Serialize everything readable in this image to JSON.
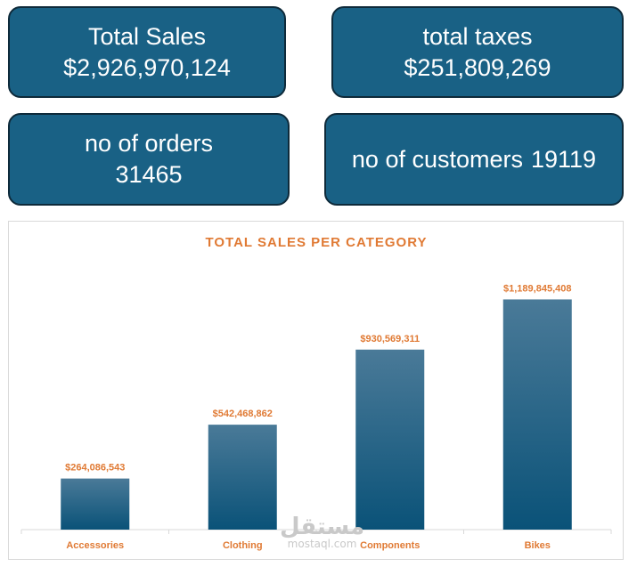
{
  "kpis": {
    "total_sales": {
      "label": "Total Sales",
      "value": "$2,926,970,124"
    },
    "total_taxes": {
      "label": "total taxes",
      "value": "$251,809,269"
    },
    "orders": {
      "label": "no of orders",
      "value": "31465"
    },
    "customers": {
      "label": "no of customers",
      "value": "19119"
    }
  },
  "colors": {
    "card_fill": "#196185",
    "card_border": "#0e2a3a",
    "bar_top": "#4a7a98",
    "bar_bottom": "#0a5278",
    "label_orange": "#e07a34"
  },
  "watermark": {
    "arabic": "مستقل",
    "latin": "mostaql.com"
  },
  "chart_data": {
    "type": "bar",
    "title": "TOTAL SALES PER CATEGORY",
    "categories": [
      "Accessories",
      "Clothing",
      "Components",
      "Bikes"
    ],
    "values": [
      264086543,
      542468862,
      930569311,
      1189845408
    ],
    "data_labels": [
      "$264,086,543",
      "$542,468,862",
      "$930,569,311",
      "$1,189,845,408"
    ],
    "ylim": [
      0,
      1270000000
    ],
    "grid": false,
    "legend": "none"
  }
}
